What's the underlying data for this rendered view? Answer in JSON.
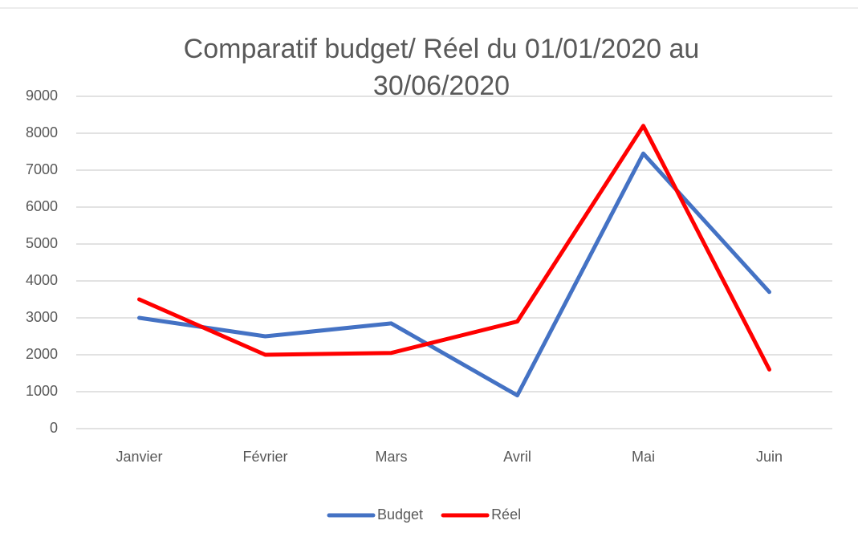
{
  "chart_data": {
    "type": "line",
    "title": "Comparatif budget/ Réel  du 01/01/2020 au 30/06/2020",
    "categories": [
      "Janvier",
      "Février",
      "Mars",
      "Avril",
      "Mai",
      "Juin"
    ],
    "series": [
      {
        "name": "Budget",
        "color": "#4472c4",
        "values": [
          3000,
          2500,
          2850,
          900,
          7450,
          3700
        ]
      },
      {
        "name": "Réel",
        "color": "#ff0000",
        "values": [
          3500,
          2000,
          2050,
          2900,
          8200,
          1600
        ]
      }
    ],
    "ylim": [
      0,
      9000
    ],
    "yticks": [
      0,
      1000,
      2000,
      3000,
      4000,
      5000,
      6000,
      7000,
      8000,
      9000
    ],
    "grid": true,
    "legend": "bottom"
  }
}
